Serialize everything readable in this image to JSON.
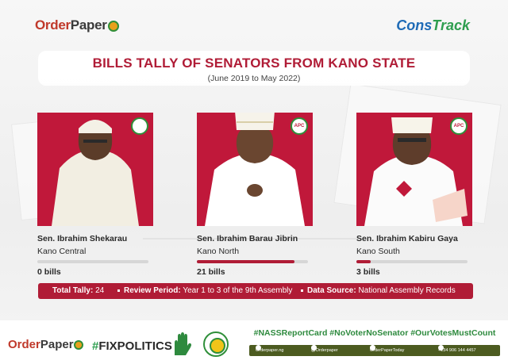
{
  "header": {
    "orderpaper_logo": {
      "part1": "Order",
      "part2": "Paper"
    },
    "constrack_logo": {
      "part1": "Cons",
      "part2": "Track"
    },
    "title": "BILLS TALLY OF SENATORS FROM KANO STATE",
    "subtitle": "(June 2019 to May 2022)"
  },
  "senators": [
    {
      "name": "Sen. Ibrahim Shekarau",
      "district": "Kano Central",
      "bills_label": "0 bills",
      "bills": 0,
      "party_icon": "pdp-logo-icon"
    },
    {
      "name": "Sen. Ibrahim Barau Jibrin",
      "district": "Kano North",
      "bills_label": "21 bills",
      "bills": 21,
      "party_icon": "apc-logo-icon",
      "party_label": "APC"
    },
    {
      "name": "Sen. Ibrahim Kabiru Gaya",
      "district": "Kano South",
      "bills_label": "3 bills",
      "bills": 3,
      "party_icon": "apc-logo-icon",
      "party_label": "APC"
    }
  ],
  "tally": {
    "total_label": "Total Tally:",
    "total_value": "24",
    "period_label": "Review Period:",
    "period_value": "Year 1 to 3 of the 9th Assembly",
    "source_label": "Data Source:",
    "source_value": "National Assembly Records"
  },
  "footer": {
    "orderpaper_logo": {
      "part1": "Order",
      "part2": "Paper"
    },
    "fixpolitics": {
      "hash": "#",
      "text": "FIXPOLITICS"
    },
    "hashtags": "#NASSReportCard #NoVoterNoSenator #OurVotesMustCount",
    "contacts": [
      "Orderpaper.ng",
      "@Orderpaper",
      "OrderPaperToday",
      "+234 906 144 4457"
    ]
  },
  "colors": {
    "accent": "#b01c36",
    "green": "#2e8a3e",
    "bar_track": "#d6d6d6"
  }
}
